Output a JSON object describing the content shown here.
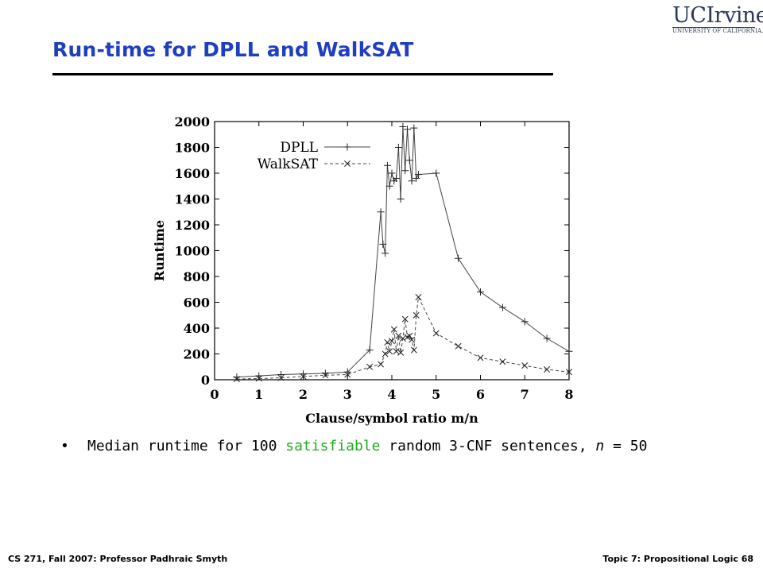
{
  "slide": {
    "title": "Run-time for DPLL and WalkSAT",
    "logo_main": "UCIrvine",
    "logo_sub": "UNIVERSITY OF CALIFORNIA, IRVINE",
    "caption": {
      "bullet": "•",
      "pre": "Median runtime for 100 ",
      "highlight": "satisfiable",
      "mid": " random 3-CNF sentences, ",
      "var": "n",
      "post": " = 50"
    },
    "footer_left": "CS 271, Fall 2007: Professor Padhraic Smyth",
    "footer_right": "Topic 7: Propositional Logic 68"
  },
  "chart_data": {
    "type": "line",
    "xlabel": "Clause/symbol ratio m/n",
    "ylabel": "Runtime",
    "xlim": [
      0,
      8
    ],
    "ylim": [
      0,
      2000
    ],
    "xticks": [
      "0",
      "1",
      "2",
      "3",
      "4",
      "5",
      "6",
      "7",
      "8"
    ],
    "yticks": [
      "0",
      "200",
      "400",
      "600",
      "800",
      "1000",
      "1200",
      "1400",
      "1600",
      "1800",
      "2000"
    ],
    "legend_position": "top-left",
    "series": [
      {
        "name": "DPLL",
        "marker": "plus",
        "line": "solid",
        "x": [
          0.5,
          1.0,
          1.5,
          2.0,
          2.5,
          3.0,
          3.5,
          3.75,
          3.8,
          3.85,
          3.9,
          3.95,
          4.0,
          4.05,
          4.1,
          4.15,
          4.2,
          4.25,
          4.3,
          4.35,
          4.4,
          4.45,
          4.5,
          4.55,
          4.6,
          5.0,
          5.5,
          6.0,
          6.5,
          7.0,
          7.5,
          8.0
        ],
        "y": [
          20,
          30,
          40,
          45,
          50,
          60,
          230,
          1300,
          1050,
          980,
          1660,
          1500,
          1600,
          1540,
          1560,
          1800,
          1400,
          1960,
          1620,
          1940,
          1700,
          1540,
          1950,
          1560,
          1590,
          1600,
          940,
          680,
          560,
          450,
          320,
          220
        ]
      },
      {
        "name": "WalkSAT",
        "marker": "x",
        "line": "dashed",
        "x": [
          0.5,
          1.0,
          1.5,
          2.0,
          2.5,
          3.0,
          3.5,
          3.75,
          3.85,
          3.9,
          3.95,
          4.0,
          4.05,
          4.1,
          4.15,
          4.2,
          4.25,
          4.3,
          4.35,
          4.4,
          4.45,
          4.5,
          4.55,
          4.6,
          5.0,
          5.5,
          6.0,
          6.5,
          7.0,
          7.5,
          8.0
        ],
        "y": [
          5,
          10,
          15,
          25,
          35,
          40,
          100,
          120,
          200,
          290,
          220,
          300,
          390,
          220,
          340,
          210,
          320,
          470,
          330,
          340,
          310,
          230,
          500,
          640,
          360,
          260,
          170,
          140,
          110,
          80,
          60
        ]
      }
    ]
  }
}
